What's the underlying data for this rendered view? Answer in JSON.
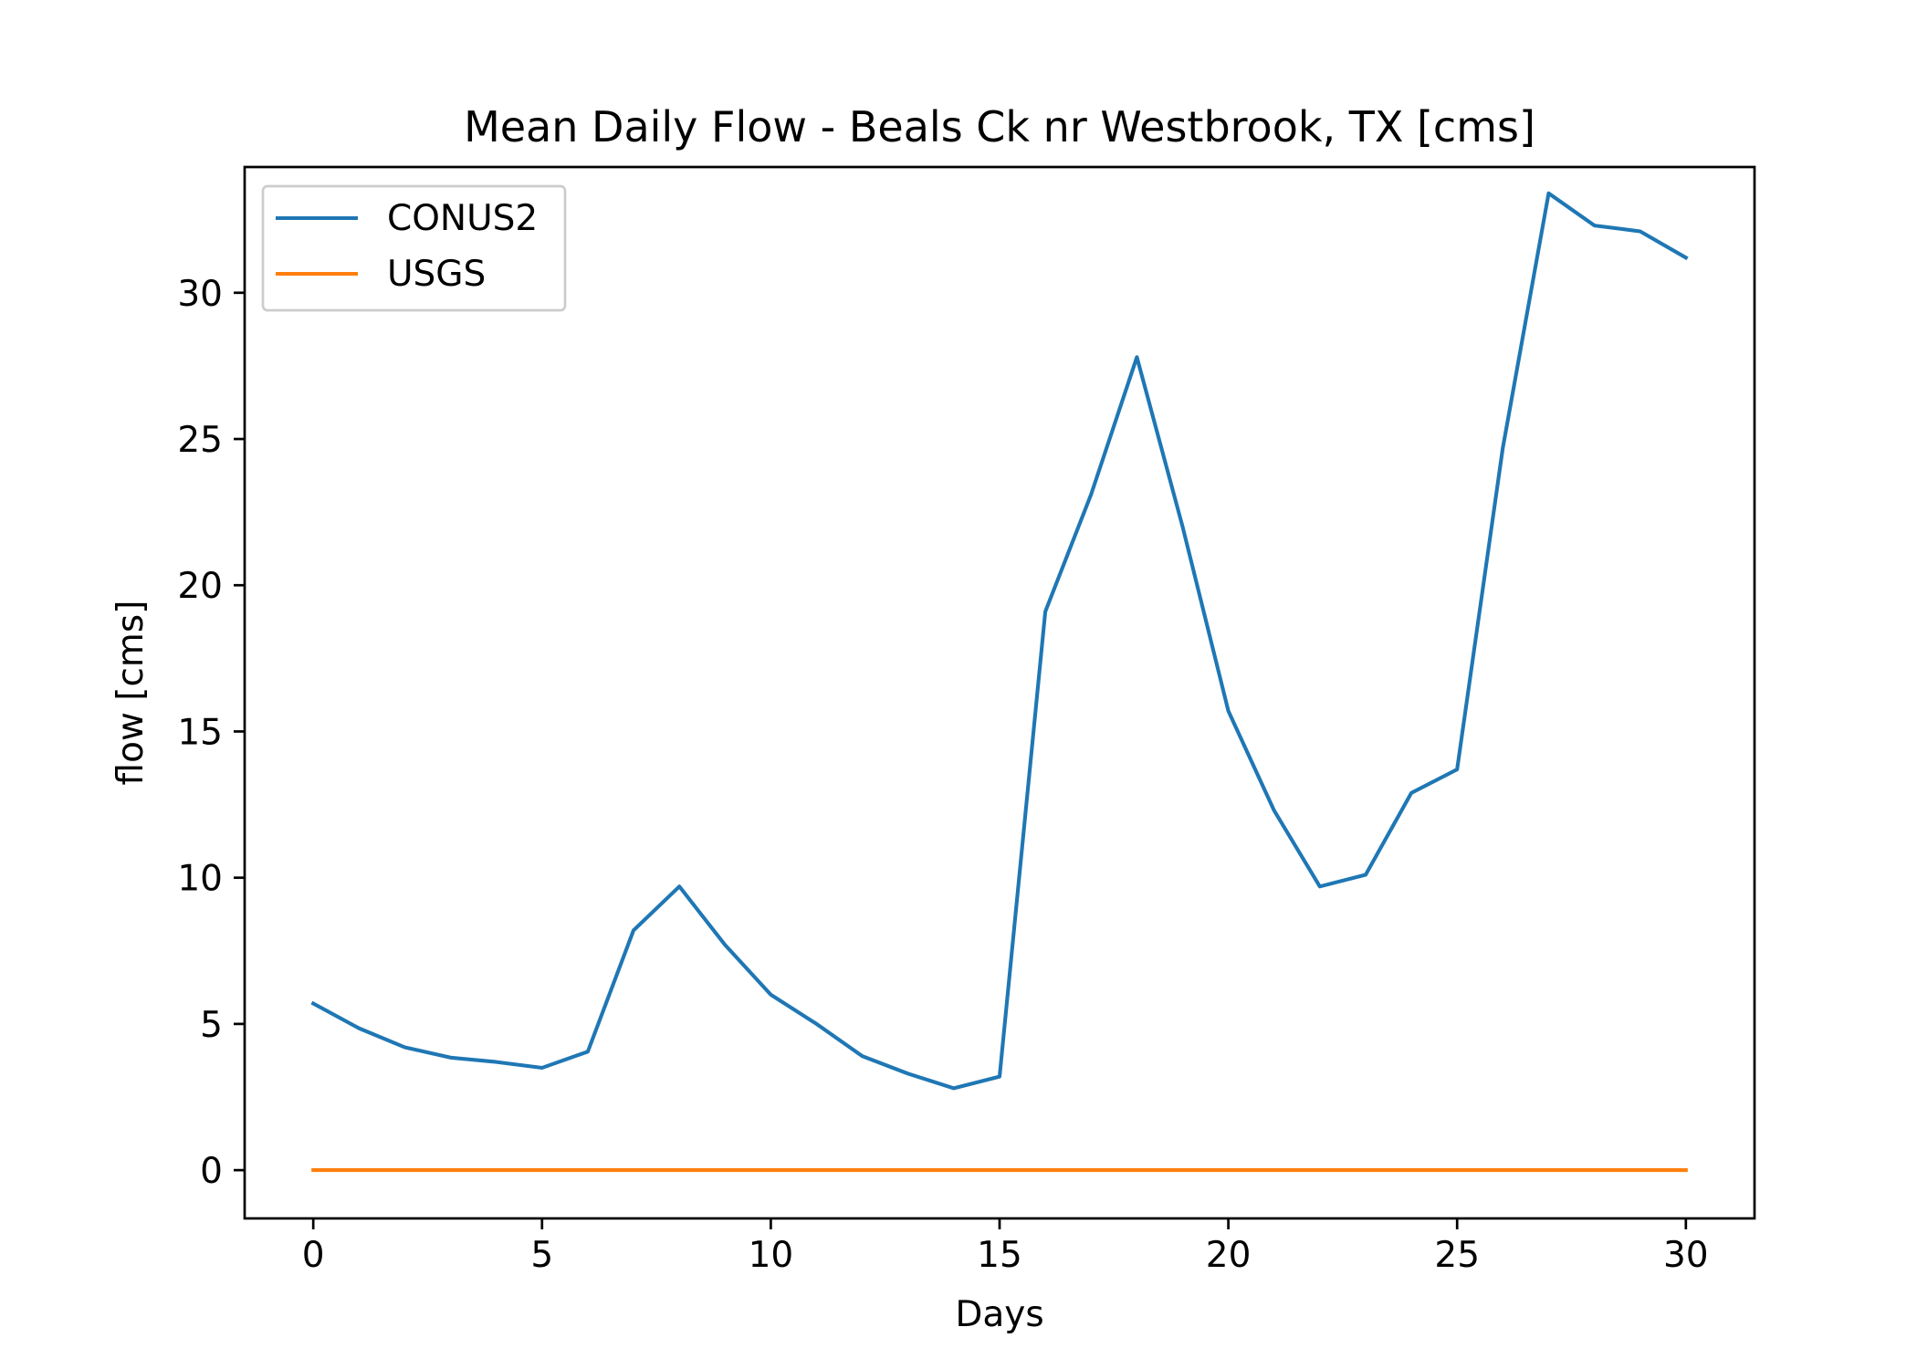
{
  "chart_data": {
    "type": "line",
    "title": "Mean Daily Flow - Beals Ck nr Westbrook, TX [cms]",
    "xlabel": "Days",
    "ylabel": "flow [cms]",
    "xlim": [
      -1.5,
      31.5
    ],
    "ylim": [
      -1.65,
      34.3
    ],
    "xticks": [
      0,
      5,
      10,
      15,
      20,
      25,
      30
    ],
    "yticks": [
      0,
      5,
      10,
      15,
      20,
      25,
      30
    ],
    "grid": false,
    "legend": "upper-left",
    "x": [
      0,
      1,
      2,
      3,
      4,
      5,
      6,
      7,
      8,
      9,
      10,
      11,
      12,
      13,
      14,
      15,
      16,
      17,
      18,
      19,
      20,
      21,
      22,
      23,
      24,
      25,
      26,
      27,
      28,
      29,
      30
    ],
    "series": [
      {
        "name": "CONUS2",
        "color": "#1f77b4",
        "values": [
          5.7,
          4.85,
          4.2,
          3.85,
          3.7,
          3.5,
          4.05,
          8.2,
          9.7,
          7.7,
          6.0,
          5.0,
          3.9,
          3.3,
          2.8,
          3.2,
          19.1,
          23.1,
          27.8,
          22.0,
          15.7,
          12.3,
          9.7,
          10.1,
          12.9,
          13.7,
          24.7,
          33.4,
          32.3,
          32.1,
          31.2
        ]
      },
      {
        "name": "USGS",
        "color": "#ff7f0e",
        "values": [
          0,
          0,
          0,
          0,
          0,
          0,
          0,
          0,
          0,
          0,
          0,
          0,
          0,
          0,
          0,
          0,
          0,
          0,
          0,
          0,
          0,
          0,
          0,
          0,
          0,
          0,
          0,
          0,
          0,
          0,
          0
        ]
      }
    ]
  }
}
